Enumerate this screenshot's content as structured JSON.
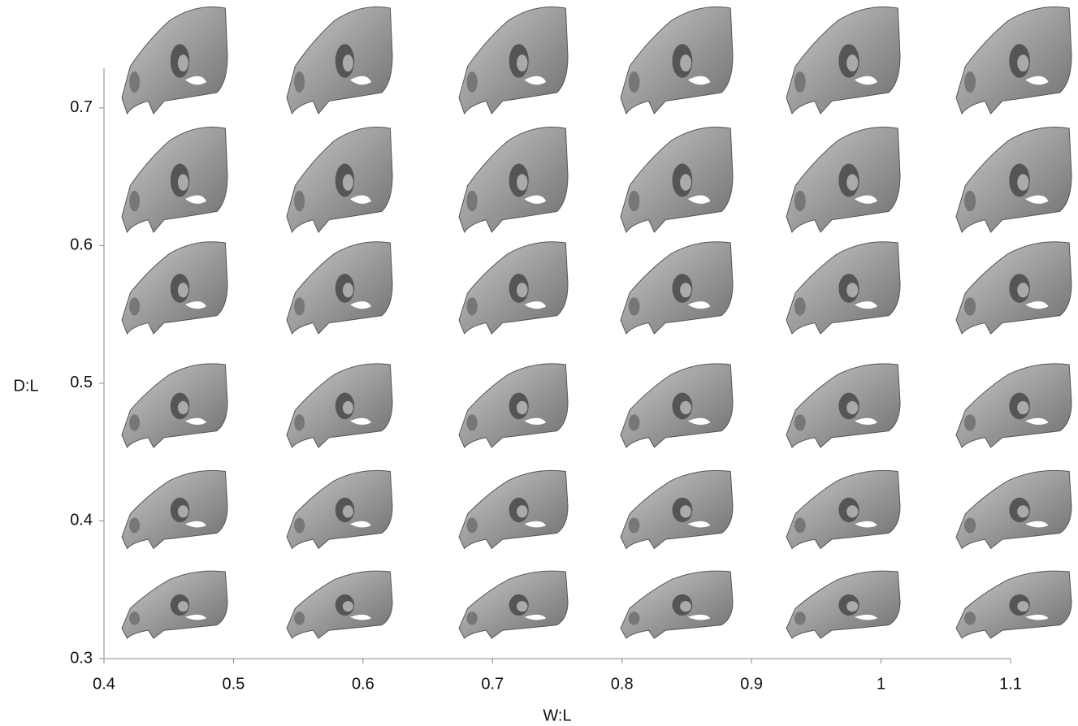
{
  "chart_data": {
    "type": "image-grid",
    "xlabel": "W:L",
    "ylabel": "D:L",
    "xlim": [
      0.4,
      1.1
    ],
    "ylim": [
      0.3,
      0.73
    ],
    "xticks": [
      0.4,
      0.5,
      0.6,
      0.7,
      0.8,
      0.9,
      1,
      1.1
    ],
    "yticks": [
      0.3,
      0.4,
      0.5,
      0.6,
      0.7
    ]
  }
}
